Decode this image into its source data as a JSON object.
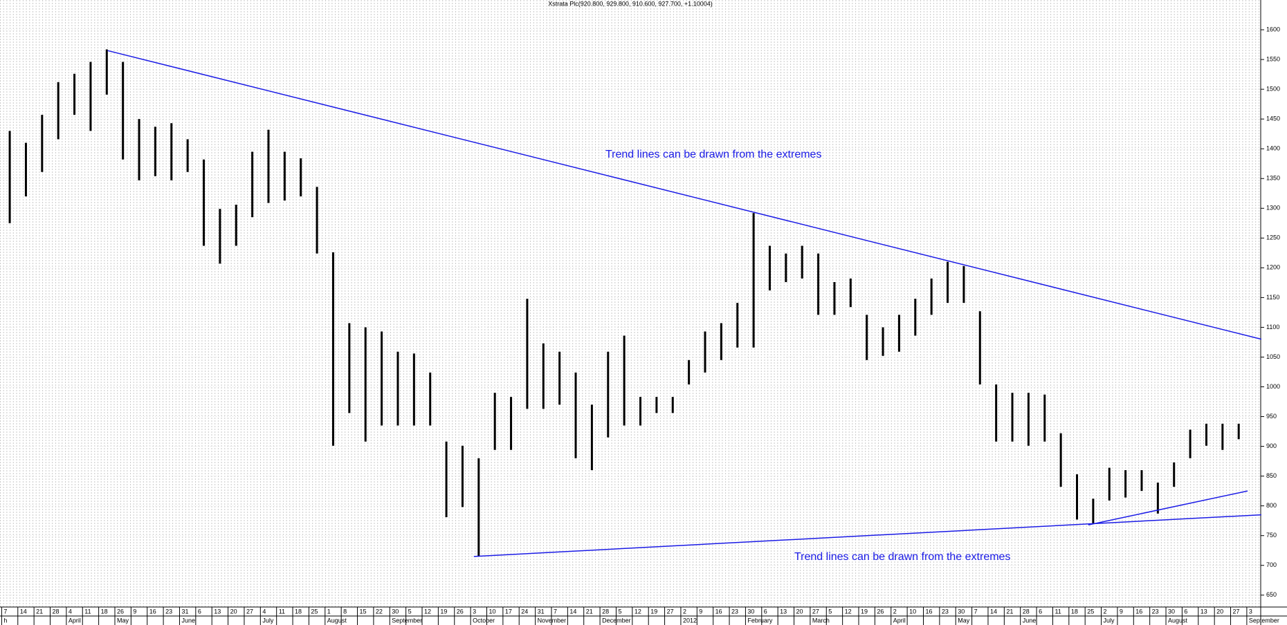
{
  "chart_data": {
    "type": "ohlc",
    "title": "Xstrata Plc(920.800, 929.800, 910.600, 927.700, +1.10004)",
    "categories": [
      "7",
      "14",
      "21",
      "28",
      "4",
      "11",
      "18",
      "26",
      "9",
      "16",
      "23",
      "31",
      "6",
      "13",
      "20",
      "27",
      "4",
      "11",
      "18",
      "25",
      "1",
      "8",
      "15",
      "22",
      "30",
      "5",
      "12",
      "19",
      "26",
      "3",
      "10",
      "17",
      "24",
      "31",
      "7",
      "14",
      "21",
      "28",
      "5",
      "12",
      "19",
      "27",
      "2",
      "9",
      "16",
      "23",
      "30",
      "6",
      "13",
      "20",
      "27",
      "5",
      "12",
      "19",
      "26",
      "2",
      "10",
      "16",
      "23",
      "30",
      "7",
      "14",
      "21",
      "28",
      "6",
      "11",
      "18",
      "25",
      "2",
      "9",
      "16",
      "23",
      "30",
      "6",
      "13",
      "20",
      "27",
      "3"
    ],
    "months": [
      "h",
      null,
      null,
      null,
      "April",
      null,
      null,
      "May",
      null,
      null,
      null,
      "June",
      null,
      null,
      null,
      null,
      "July",
      null,
      null,
      null,
      "August",
      null,
      null,
      null,
      "September",
      null,
      null,
      null,
      null,
      "October",
      null,
      null,
      null,
      "November",
      null,
      null,
      null,
      "December",
      null,
      null,
      null,
      null,
      "2012",
      null,
      null,
      null,
      "February",
      null,
      null,
      null,
      "March",
      null,
      null,
      null,
      null,
      "April",
      null,
      null,
      null,
      "May",
      null,
      null,
      null,
      "June",
      null,
      null,
      null,
      null,
      "July",
      null,
      null,
      null,
      "August",
      null,
      null,
      null,
      null,
      "September"
    ],
    "high": [
      1430,
      1410,
      1457,
      1512,
      1526,
      1546,
      1567,
      1546,
      1450,
      1437,
      1443,
      1416,
      1382,
      1299,
      1306,
      1395,
      1432,
      1395,
      1384,
      1336,
      1226,
      1107,
      1100,
      1093,
      1059,
      1056,
      1024,
      908,
      901,
      880,
      990,
      983,
      1148,
      1073,
      1059,
      1024,
      970,
      1059,
      1086,
      983,
      983,
      983,
      1045,
      1093,
      1107,
      1141,
      1292,
      1237,
      1224,
      1237,
      1224,
      1176,
      1182,
      1121,
      1100,
      1121,
      1148,
      1182,
      1210,
      1203,
      1127,
      1004,
      990,
      990,
      987,
      922,
      853,
      812,
      864,
      860,
      860,
      839,
      873,
      928,
      938,
      938,
      938,
      null
    ],
    "low": [
      1275,
      1320,
      1361,
      1416,
      1457,
      1430,
      1491,
      1382,
      1347,
      1354,
      1347,
      1361,
      1237,
      1207,
      1237,
      1285,
      1309,
      1313,
      1320,
      1224,
      901,
      956,
      908,
      935,
      935,
      935,
      935,
      781,
      798,
      715,
      894,
      894,
      963,
      963,
      970,
      880,
      860,
      915,
      935,
      935,
      956,
      956,
      1004,
      1024,
      1045,
      1066,
      1066,
      1162,
      1176,
      1182,
      1121,
      1121,
      1134,
      1045,
      1052,
      1059,
      1086,
      1121,
      1141,
      1141,
      1004,
      908,
      908,
      901,
      908,
      832,
      777,
      770,
      809,
      814,
      825,
      787,
      832,
      880,
      901,
      894,
      912,
      null
    ],
    "color": "#000000",
    "ylim": [
      630,
      1650
    ],
    "yticks": [
      650,
      700,
      750,
      800,
      850,
      900,
      950,
      1000,
      1050,
      1100,
      1150,
      1200,
      1250,
      1300,
      1350,
      1400,
      1450,
      1500,
      1550,
      1600
    ],
    "grid": true,
    "trendlines": [
      {
        "x": [
          6.55,
          77.9
        ],
        "y": [
          1565,
          1080
        ],
        "color": "#1a1ae6"
      },
      {
        "x": [
          29.2,
          77.9
        ],
        "y": [
          715,
          785
        ],
        "color": "#1a1ae6"
      },
      {
        "x": [
          67.2,
          77.05
        ],
        "y": [
          768,
          825
        ],
        "color": "#1a1ae6"
      }
    ],
    "annotations": [
      "Trend lines can be drawn from the extremes",
      "Trend lines can be drawn from the extremes"
    ]
  }
}
